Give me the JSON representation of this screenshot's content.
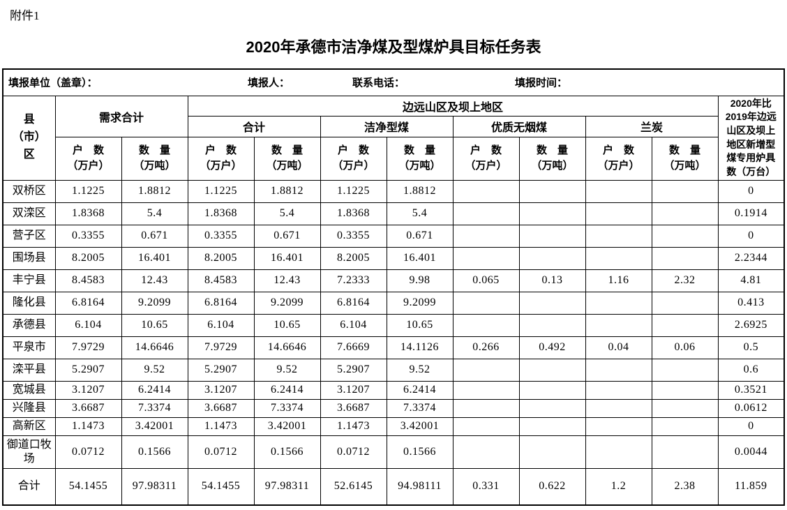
{
  "colors": {
    "text": "#000000",
    "background": "#ffffff",
    "border": "#000000"
  },
  "page": {
    "attachment_label": "附件1",
    "title": "2020年承德市洁净煤及型煤炉具目标任务表"
  },
  "form_info": {
    "unit_label": "填报单位（盖章）：",
    "reporter_label": "填报人：",
    "phone_label": "联系电话：",
    "date_label": "填报时间："
  },
  "table": {
    "header": {
      "county": "县\n（市）\n区",
      "demand_total": "需求合计",
      "remote_region_group": "边远山区及坝上地区",
      "subgroup_total": "合计",
      "subgroup_clean_coal": "洁净型煤",
      "subgroup_anthracite": "优质无烟煤",
      "subgroup_semi_coke": "兰炭",
      "households": "户　数\n（万户）",
      "quantity": "数　量\n（万吨）",
      "new_stoves": "2020年比\n2019年边远\n山区及坝上\n地区新增型\n煤专用炉具\n数（万台）"
    },
    "rows": [
      {
        "name": "双桥区",
        "values": [
          "1.1225",
          "1.8812",
          "1.1225",
          "1.8812",
          "1.1225",
          "1.8812",
          "",
          "",
          "",
          "",
          "0"
        ]
      },
      {
        "name": "双滦区",
        "values": [
          "1.8368",
          "5.4",
          "1.8368",
          "5.4",
          "1.8368",
          "5.4",
          "",
          "",
          "",
          "",
          "0.1914"
        ]
      },
      {
        "name": "营子区",
        "values": [
          "0.3355",
          "0.671",
          "0.3355",
          "0.671",
          "0.3355",
          "0.671",
          "",
          "",
          "",
          "",
          "0"
        ]
      },
      {
        "name": "围场县",
        "values": [
          "8.2005",
          "16.401",
          "8.2005",
          "16.401",
          "8.2005",
          "16.401",
          "",
          "",
          "",
          "",
          "2.2344"
        ]
      },
      {
        "name": "丰宁县",
        "values": [
          "8.4583",
          "12.43",
          "8.4583",
          "12.43",
          "7.2333",
          "9.98",
          "0.065",
          "0.13",
          "1.16",
          "2.32",
          "4.81"
        ]
      },
      {
        "name": "隆化县",
        "values": [
          "6.8164",
          "9.2099",
          "6.8164",
          "9.2099",
          "6.8164",
          "9.2099",
          "",
          "",
          "",
          "",
          "0.413"
        ]
      },
      {
        "name": "承德县",
        "values": [
          "6.104",
          "10.65",
          "6.104",
          "10.65",
          "6.104",
          "10.65",
          "",
          "",
          "",
          "",
          "2.6925"
        ]
      },
      {
        "name": "平泉市",
        "values": [
          "7.9729",
          "14.6646",
          "7.9729",
          "14.6646",
          "7.6669",
          "14.1126",
          "0.266",
          "0.492",
          "0.04",
          "0.06",
          "0.5"
        ]
      },
      {
        "name": "滦平县",
        "values": [
          "5.2907",
          "9.52",
          "5.2907",
          "9.52",
          "5.2907",
          "9.52",
          "",
          "",
          "",
          "",
          "0.6"
        ]
      },
      {
        "name": "宽城县",
        "values": [
          "3.1207",
          "6.2414",
          "3.1207",
          "6.2414",
          "3.1207",
          "6.2414",
          "",
          "",
          "",
          "",
          "0.3521"
        ]
      },
      {
        "name": "兴隆县",
        "values": [
          "3.6687",
          "7.3374",
          "3.6687",
          "7.3374",
          "3.6687",
          "7.3374",
          "",
          "",
          "",
          "",
          "0.0612"
        ]
      },
      {
        "name": "高新区",
        "values": [
          "1.1473",
          "3.42001",
          "1.1473",
          "3.42001",
          "1.1473",
          "3.42001",
          "",
          "",
          "",
          "",
          "0"
        ]
      },
      {
        "name": "御道口牧场",
        "values": [
          "0.0712",
          "0.1566",
          "0.0712",
          "0.1566",
          "0.0712",
          "0.1566",
          "",
          "",
          "",
          "",
          "0.0044"
        ]
      }
    ],
    "total_row": {
      "name": "合计",
      "values": [
        "54.1455",
        "97.98311",
        "54.1455",
        "97.98311",
        "52.6145",
        "94.98111",
        "0.331",
        "0.622",
        "1.2",
        "2.38",
        "11.859"
      ]
    }
  }
}
